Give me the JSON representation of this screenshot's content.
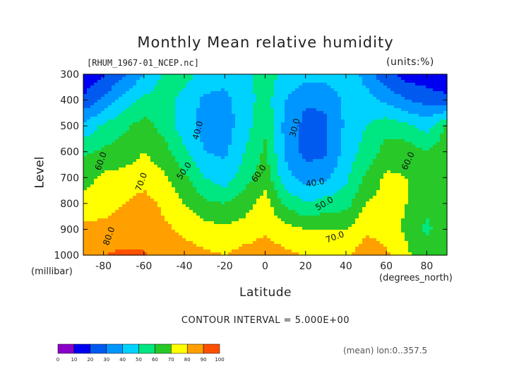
{
  "title": "Monthly Mean relative humidity",
  "file_label": "[RHUM_1967-01_NCEP.nc]",
  "units_label": "(units:%)",
  "contour_interval": "CONTOUR INTERVAL = 5.000E+00",
  "footnote": "(mean) lon:0..357.5",
  "colors": {
    "bins": [
      "#8a00c8",
      "#0000f0",
      "#005af0",
      "#0096ff",
      "#00d2ff",
      "#00e680",
      "#28c828",
      "#ffff00",
      "#ffa000",
      "#ff5000",
      "#ff0000"
    ]
  },
  "chart_data": {
    "type": "heatmap",
    "title": "Monthly Mean relative humidity",
    "xlabel": "Latitude",
    "x_unit": "(degrees_north)",
    "ylabel": "Level",
    "y_unit": "(millibar)",
    "xlim": [
      -90,
      90
    ],
    "ylim": [
      1000,
      300
    ],
    "x_ticks": [
      -80,
      -60,
      -40,
      -20,
      0,
      20,
      40,
      60,
      80
    ],
    "x_tick_labels": [
      "-80",
      "-60",
      "-40",
      "-20",
      "0",
      "20",
      "40",
      "60",
      "80"
    ],
    "y_ticks": [
      300,
      400,
      500,
      600,
      700,
      800,
      900,
      1000
    ],
    "y_tick_labels": [
      "300",
      "400",
      "500",
      "600",
      "700",
      "800",
      "900",
      "1000"
    ],
    "contour_interval": 5,
    "colorbar_levels": [
      0,
      10,
      20,
      30,
      40,
      50,
      60,
      70,
      80,
      90,
      100
    ],
    "colorbar_labels": [
      "0",
      "10",
      "20",
      "30",
      "40",
      "50",
      "60",
      "70",
      "80",
      "90",
      "100"
    ],
    "lat": [
      -90,
      -80,
      -70,
      -60,
      -50,
      -40,
      -30,
      -20,
      -10,
      0,
      10,
      20,
      30,
      40,
      50,
      60,
      70,
      80,
      90
    ],
    "levels": [
      300,
      400,
      500,
      600,
      700,
      800,
      900,
      1000
    ],
    "values": [
      [
        12,
        18,
        28,
        40,
        52,
        54,
        46,
        44,
        48,
        54,
        48,
        44,
        44,
        48,
        36,
        22,
        16,
        14,
        12
      ],
      [
        22,
        32,
        44,
        52,
        55,
        46,
        38,
        37,
        45,
        55,
        40,
        31,
        32,
        42,
        44,
        38,
        30,
        26,
        22
      ],
      [
        42,
        52,
        58,
        64,
        56,
        44,
        36,
        35,
        46,
        58,
        37,
        27,
        28,
        42,
        50,
        56,
        52,
        46,
        62
      ],
      [
        58,
        62,
        64,
        70,
        64,
        52,
        40,
        38,
        50,
        62,
        38,
        26,
        28,
        44,
        54,
        64,
        66,
        60,
        66
      ],
      [
        66,
        72,
        74,
        76,
        72,
        62,
        50,
        44,
        56,
        66,
        44,
        36,
        38,
        48,
        62,
        72,
        70,
        64,
        70
      ],
      [
        74,
        76,
        80,
        84,
        78,
        70,
        62,
        60,
        66,
        74,
        58,
        50,
        54,
        56,
        70,
        74,
        70,
        62,
        68
      ],
      [
        82,
        83,
        84,
        85,
        82,
        78,
        74,
        72,
        74,
        78,
        74,
        70,
        70,
        70,
        78,
        76,
        68,
        58,
        66
      ],
      [
        88,
        90,
        92,
        91,
        88,
        84,
        82,
        80,
        84,
        86,
        82,
        80,
        78,
        78,
        86,
        82,
        72,
        64,
        70
      ]
    ],
    "contour_labels": [
      "60.0",
      "70.0",
      "80.0",
      "40.0",
      "50.0",
      "60.0",
      "30.0",
      "40.0",
      "50.0",
      "70.0",
      "60.0"
    ]
  }
}
